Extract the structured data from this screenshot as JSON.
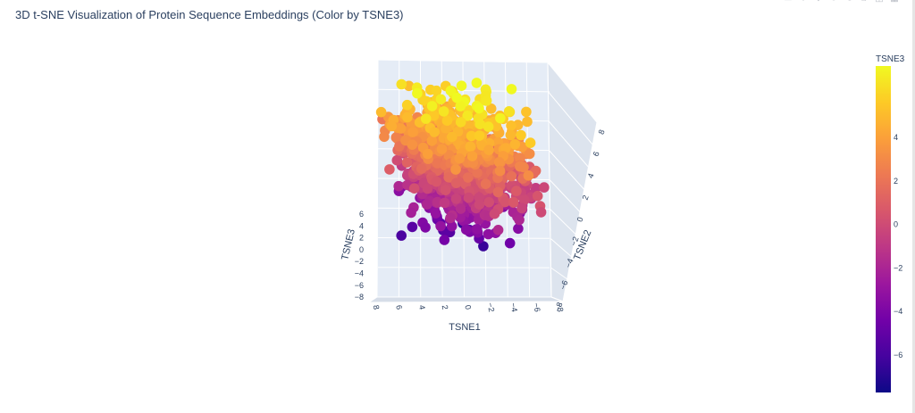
{
  "modebar": {
    "icons": [
      "camera-icon",
      "zoom-icon",
      "pan-icon",
      "orbit-icon",
      "turntable-icon",
      "home-icon",
      "hover-icon",
      "plotly-logo-icon"
    ],
    "glyphs": [
      "▭",
      "＋",
      "✥",
      "↻",
      "⟲",
      "⌂",
      "◫",
      "▦"
    ]
  },
  "chart_data": {
    "type": "scatter",
    "projection": "3d",
    "title": "3D t-SNE Visualization of Protein Sequence Embeddings (Color by TSNE3)",
    "xlabel": "TSNE1",
    "ylabel": "TSNE2",
    "zlabel": "TSNE3",
    "x_ticks": [
      "8",
      "6",
      "4",
      "2",
      "0",
      "−2",
      "−4",
      "−6",
      "−8"
    ],
    "y_ticks": [
      "−8",
      "−6",
      "−4",
      "−2",
      "0",
      "2",
      "4",
      "6",
      "8"
    ],
    "z_ticks": [
      "6",
      "4",
      "2",
      "0",
      "−2",
      "−4",
      "−6",
      "−8"
    ],
    "xlim": [
      -8,
      8
    ],
    "ylim": [
      -8,
      8
    ],
    "zlim": [
      -8,
      8
    ],
    "color_by": "TSNE3",
    "colorscale": "plasma",
    "colorscale_stops": [
      "#0d0887",
      "#46039f",
      "#7201a8",
      "#9c179e",
      "#bd3786",
      "#d8576b",
      "#ed7953",
      "#fb9f3a",
      "#fdca26",
      "#f0f921"
    ],
    "colorbar": {
      "title": "TSNE3",
      "ticks": [
        "4",
        "2",
        "0",
        "−2",
        "−4",
        "−6"
      ],
      "range": [
        -7.5,
        7.5
      ]
    },
    "point_count": 1200,
    "grid": true,
    "background": "#e5ecf6"
  }
}
